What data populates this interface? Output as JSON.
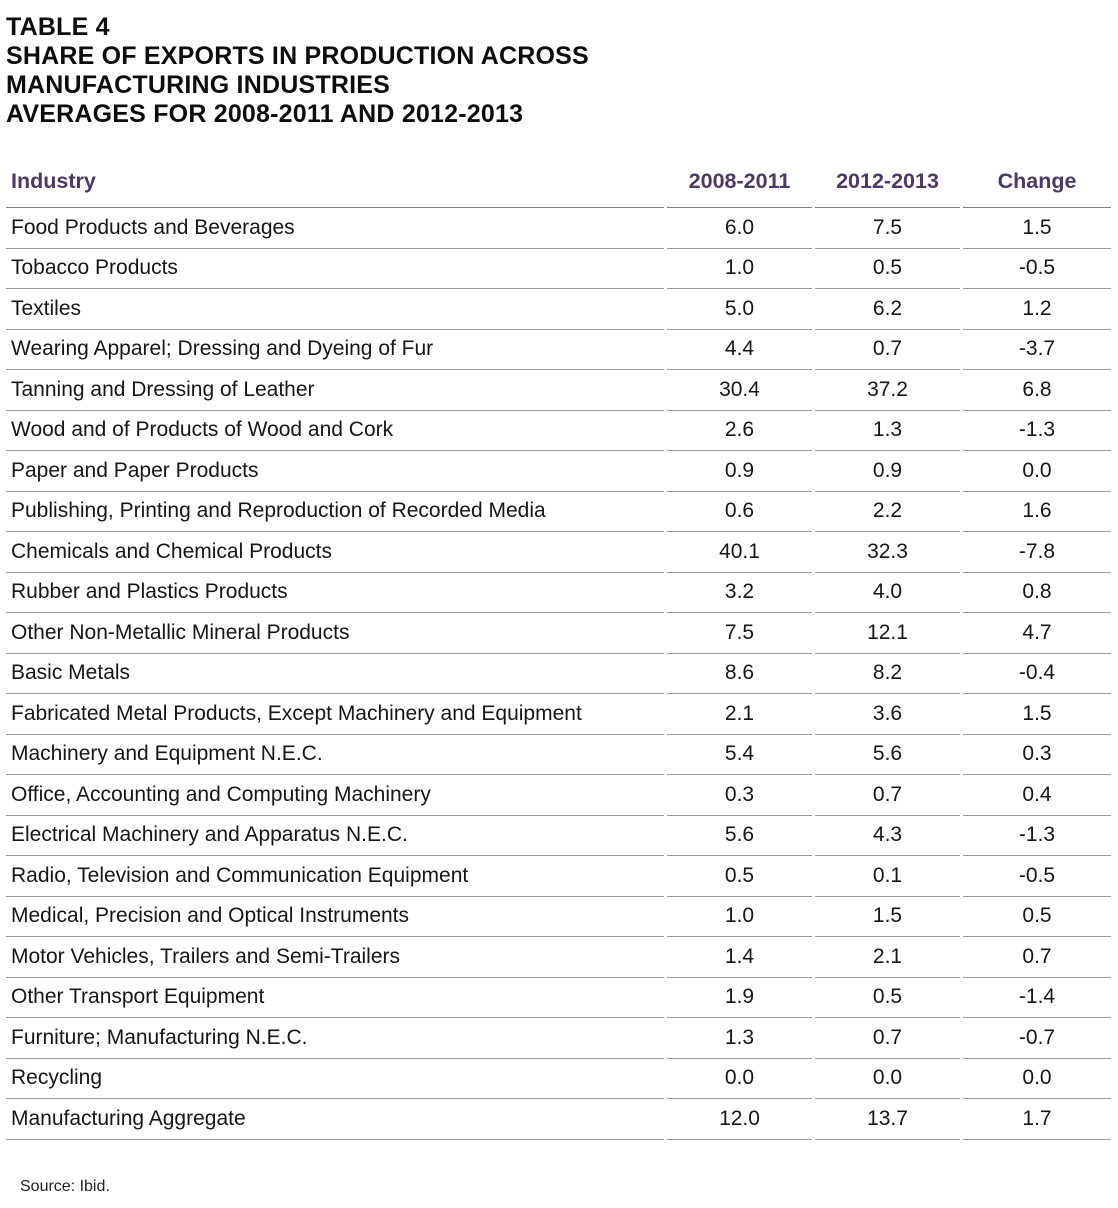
{
  "title": {
    "lines": [
      "TABLE 4",
      "SHARE OF EXPORTS IN PRODUCTION ACROSS",
      "MANUFACTURING INDUSTRIES",
      "AVERAGES FOR 2008-2011 AND 2012-2013"
    ]
  },
  "table": {
    "columns": [
      "Industry",
      "2008-2011",
      "2012-2013",
      "Change"
    ],
    "rows": [
      {
        "industry": "Food Products and Beverages",
        "avg_2008_2011": "6.0",
        "avg_2012_2013": "7.5",
        "change": "1.5"
      },
      {
        "industry": "Tobacco Products",
        "avg_2008_2011": "1.0",
        "avg_2012_2013": "0.5",
        "change": "-0.5"
      },
      {
        "industry": "Textiles",
        "avg_2008_2011": "5.0",
        "avg_2012_2013": "6.2",
        "change": "1.2"
      },
      {
        "industry": "Wearing Apparel; Dressing and Dyeing of Fur",
        "avg_2008_2011": "4.4",
        "avg_2012_2013": "0.7",
        "change": "-3.7"
      },
      {
        "industry": "Tanning and Dressing of Leather",
        "avg_2008_2011": "30.4",
        "avg_2012_2013": "37.2",
        "change": "6.8"
      },
      {
        "industry": "Wood and of Products of Wood and Cork",
        "avg_2008_2011": "2.6",
        "avg_2012_2013": "1.3",
        "change": "-1.3"
      },
      {
        "industry": "Paper and Paper Products",
        "avg_2008_2011": "0.9",
        "avg_2012_2013": "0.9",
        "change": "0.0"
      },
      {
        "industry": "Publishing, Printing and Reproduction of Recorded Media",
        "avg_2008_2011": "0.6",
        "avg_2012_2013": "2.2",
        "change": "1.6"
      },
      {
        "industry": "Chemicals and Chemical Products",
        "avg_2008_2011": "40.1",
        "avg_2012_2013": "32.3",
        "change": "-7.8"
      },
      {
        "industry": "Rubber and Plastics Products",
        "avg_2008_2011": "3.2",
        "avg_2012_2013": "4.0",
        "change": "0.8"
      },
      {
        "industry": "Other Non-Metallic Mineral Products",
        "avg_2008_2011": "7.5",
        "avg_2012_2013": "12.1",
        "change": "4.7"
      },
      {
        "industry": "Basic Metals",
        "avg_2008_2011": "8.6",
        "avg_2012_2013": "8.2",
        "change": "-0.4"
      },
      {
        "industry": "Fabricated Metal Products, Except Machinery and Equipment",
        "avg_2008_2011": "2.1",
        "avg_2012_2013": "3.6",
        "change": "1.5"
      },
      {
        "industry": "Machinery and Equipment N.E.C.",
        "avg_2008_2011": "5.4",
        "avg_2012_2013": "5.6",
        "change": "0.3"
      },
      {
        "industry": "Office, Accounting and Computing Machinery",
        "avg_2008_2011": "0.3",
        "avg_2012_2013": "0.7",
        "change": "0.4"
      },
      {
        "industry": "Electrical Machinery and Apparatus N.E.C.",
        "avg_2008_2011": "5.6",
        "avg_2012_2013": "4.3",
        "change": "-1.3"
      },
      {
        "industry": "Radio, Television and Communication Equipment",
        "avg_2008_2011": "0.5",
        "avg_2012_2013": "0.1",
        "change": "-0.5"
      },
      {
        "industry": "Medical, Precision and Optical Instruments",
        "avg_2008_2011": "1.0",
        "avg_2012_2013": "1.5",
        "change": "0.5"
      },
      {
        "industry": "Motor Vehicles, Trailers and Semi-Trailers",
        "avg_2008_2011": "1.4",
        "avg_2012_2013": "2.1",
        "change": "0.7"
      },
      {
        "industry": "Other Transport Equipment",
        "avg_2008_2011": "1.9",
        "avg_2012_2013": "0.5",
        "change": "-1.4"
      },
      {
        "industry": "Furniture; Manufacturing N.E.C.",
        "avg_2008_2011": "1.3",
        "avg_2012_2013": "0.7",
        "change": "-0.7"
      },
      {
        "industry": "Recycling",
        "avg_2008_2011": "0.0",
        "avg_2012_2013": "0.0",
        "change": "0.0"
      },
      {
        "industry": "Manufacturing Aggregate",
        "avg_2008_2011": "12.0",
        "avg_2012_2013": "13.7",
        "change": "1.7"
      }
    ]
  },
  "source": "Source: Ibid.",
  "colors": {
    "header_text": "#4B3964",
    "body_text": "#161616",
    "rule_gray": "#9c9c9c",
    "background": "#ffffff"
  }
}
